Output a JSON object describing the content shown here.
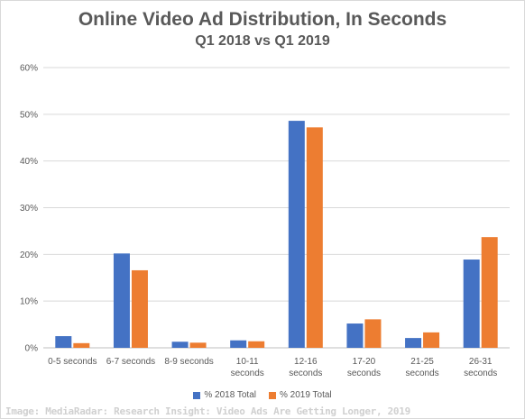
{
  "chart_data": {
    "type": "bar",
    "title": "Online Video Ad Distribution, In Seconds",
    "subtitle": "Q1 2018 vs Q1 2019",
    "xlabel": "",
    "ylabel": "",
    "categories": [
      [
        "0-5 seconds"
      ],
      [
        "6-7 seconds"
      ],
      [
        "8-9 seconds"
      ],
      [
        "10-11",
        "seconds"
      ],
      [
        "12-16",
        "seconds"
      ],
      [
        "17-20",
        "seconds"
      ],
      [
        "21-25",
        "seconds"
      ],
      [
        "26-31",
        "seconds"
      ]
    ],
    "series": [
      {
        "name": "% 2018 Total",
        "color": "#4472c4",
        "values": [
          2.5,
          20.2,
          1.3,
          1.6,
          48.6,
          5.2,
          2.1,
          18.9
        ]
      },
      {
        "name": "% 2019 Total",
        "color": "#ed7d31",
        "values": [
          1.0,
          16.6,
          1.1,
          1.4,
          47.2,
          6.1,
          3.3,
          23.7
        ]
      }
    ],
    "ylim": [
      0,
      60
    ],
    "yticks": [
      0,
      10,
      20,
      30,
      40,
      50,
      60
    ],
    "ytick_format": "%",
    "grid": "horizontal",
    "legend": "bottom-center"
  },
  "source": "Image: MediaRadar: Research Insight: Video Ads Are Getting Longer, 2019"
}
